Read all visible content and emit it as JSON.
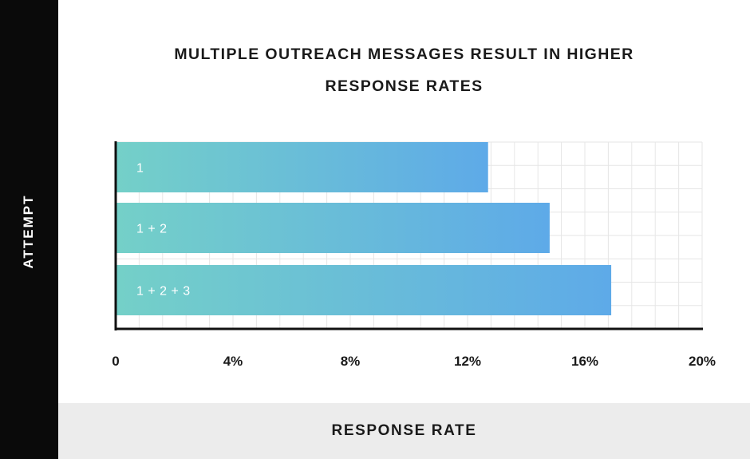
{
  "chart_data": {
    "type": "bar",
    "orientation": "horizontal",
    "title": [
      "MULTIPLE OUTREACH MESSAGES RESULT IN HIGHER",
      "RESPONSE RATES"
    ],
    "xlabel": "RESPONSE RATE",
    "ylabel": "ATTEMPT",
    "categories": [
      "1",
      "1 + 2",
      "1 + 2 + 3"
    ],
    "values": [
      12.7,
      14.8,
      16.9
    ],
    "xlim": [
      0,
      20
    ],
    "xticks": [
      "0",
      "4%",
      "8%",
      "12%",
      "16%",
      "20%"
    ],
    "grid": true,
    "bar_gradient": [
      "#74d0c8",
      "#5eaae8"
    ]
  }
}
